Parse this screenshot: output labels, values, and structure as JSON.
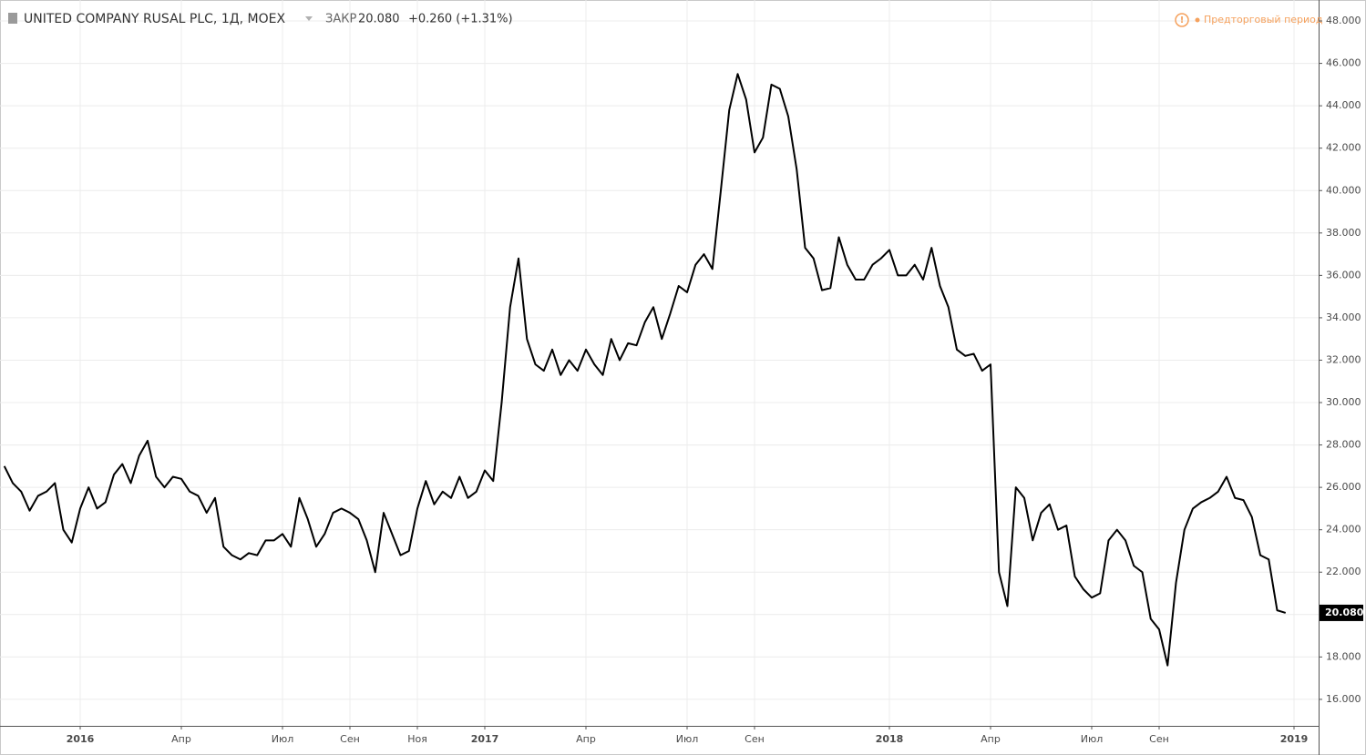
{
  "chart_data": {
    "type": "line",
    "title": "UNITED COMPANY RUSAL PLC, 1Д, MOEX",
    "close_label": "ЗАКР",
    "close_value": "20.080",
    "change": "+0.260 (+1.31%)",
    "session_note": "Предторговый период",
    "last_value_label": "20.080",
    "grid": true,
    "categories": [
      null,
      null,
      null,
      null,
      null,
      null,
      null,
      null,
      null,
      "2016",
      null,
      null,
      null,
      null,
      null,
      null,
      null,
      null,
      null,
      null,
      null,
      "Апр",
      null,
      null,
      null,
      null,
      null,
      null,
      null,
      null,
      null,
      null,
      null,
      "Июл",
      null,
      null,
      null,
      null,
      null,
      null,
      null,
      "Сен",
      null,
      null,
      null,
      null,
      null,
      null,
      null,
      "Ноя",
      null,
      null,
      null,
      null,
      null,
      null,
      null,
      "2017",
      null,
      null,
      null,
      null,
      null,
      null,
      null,
      null,
      null,
      null,
      null,
      "Апр",
      null,
      null,
      null,
      null,
      null,
      null,
      null,
      null,
      null,
      null,
      null,
      "Июл",
      null,
      null,
      null,
      null,
      null,
      null,
      null,
      "Сен",
      null,
      null,
      null,
      null,
      null,
      null,
      null,
      null,
      null,
      null,
      null,
      null,
      null,
      null,
      null,
      "2018",
      null,
      null,
      null,
      null,
      null,
      null,
      null,
      null,
      null,
      null,
      null,
      "Апр",
      null,
      null,
      null,
      null,
      null,
      null,
      null,
      null,
      null,
      null,
      null,
      "Июл",
      null,
      null,
      null,
      null,
      null,
      null,
      null,
      "Сен",
      null,
      null,
      null,
      null,
      null,
      null,
      null,
      null,
      null,
      null,
      null,
      null,
      null,
      null,
      null,
      "2019"
    ],
    "series": [
      {
        "color": "#000000",
        "values": [
          27.0,
          26.2,
          25.8,
          24.9,
          25.6,
          25.8,
          26.2,
          24.0,
          23.4,
          25.0,
          26.0,
          25.0,
          25.3,
          26.6,
          27.1,
          26.2,
          27.5,
          28.2,
          26.5,
          26.0,
          26.5,
          26.4,
          25.8,
          25.6,
          24.8,
          25.5,
          23.2,
          22.8,
          22.6,
          22.9,
          22.8,
          23.5,
          23.5,
          23.8,
          23.2,
          25.5,
          24.5,
          23.2,
          23.8,
          24.8,
          25.0,
          24.8,
          24.5,
          23.5,
          22.0,
          24.8,
          23.8,
          22.8,
          23.0,
          25.0,
          26.3,
          25.2,
          25.8,
          25.5,
          26.5,
          25.5,
          25.8,
          26.8,
          26.3,
          30.0,
          34.5,
          36.8,
          33.0,
          31.8,
          31.5,
          32.5,
          31.3,
          32.0,
          31.5,
          32.5,
          31.8,
          31.3,
          33.0,
          32.0,
          32.8,
          32.7,
          33.8,
          34.5,
          33.0,
          34.2,
          35.5,
          35.2,
          36.5,
          37.0,
          36.3,
          40.0,
          43.8,
          45.5,
          44.3,
          41.8,
          42.5,
          45.0,
          44.8,
          43.5,
          41.0,
          37.3,
          36.8,
          35.3,
          35.4,
          37.8,
          36.5,
          35.8,
          35.8,
          36.5,
          36.8,
          37.2,
          36.0,
          36.0,
          36.5,
          35.8,
          37.3,
          35.5,
          34.5,
          32.5,
          32.2,
          32.3,
          31.5,
          31.8,
          22.0,
          20.4,
          26.0,
          25.5,
          23.5,
          24.8,
          25.2,
          24.0,
          24.2,
          21.8,
          21.2,
          20.8,
          21.0,
          23.5,
          24.0,
          23.5,
          22.3,
          22.0,
          19.8,
          19.3,
          17.6,
          21.5,
          24.0,
          25.0,
          25.3,
          25.5,
          25.8,
          26.5,
          25.5,
          25.4,
          24.6,
          22.8,
          22.6,
          20.2,
          20.08,
          null
        ]
      }
    ],
    "ylim": [
      14.75,
      48.56
    ],
    "yticks": [
      {
        "value": 16,
        "label": "16.000"
      },
      {
        "value": 18,
        "label": "18.000"
      },
      {
        "value": 20,
        "label": "20.000"
      },
      {
        "value": 22,
        "label": "22.000"
      },
      {
        "value": 24,
        "label": "24.000"
      },
      {
        "value": 26,
        "label": "26.000"
      },
      {
        "value": 28,
        "label": "28.000"
      },
      {
        "value": 30,
        "label": "30.000"
      },
      {
        "value": 32,
        "label": "32.000"
      },
      {
        "value": 34,
        "label": "34.000"
      },
      {
        "value": 36,
        "label": "36.000"
      },
      {
        "value": 38,
        "label": "38.000"
      },
      {
        "value": 40,
        "label": "40.000"
      },
      {
        "value": 42,
        "label": "42.000"
      },
      {
        "value": 44,
        "label": "44.000"
      },
      {
        "value": 46,
        "label": "46.000"
      },
      {
        "value": 48,
        "label": "48.000"
      }
    ]
  }
}
